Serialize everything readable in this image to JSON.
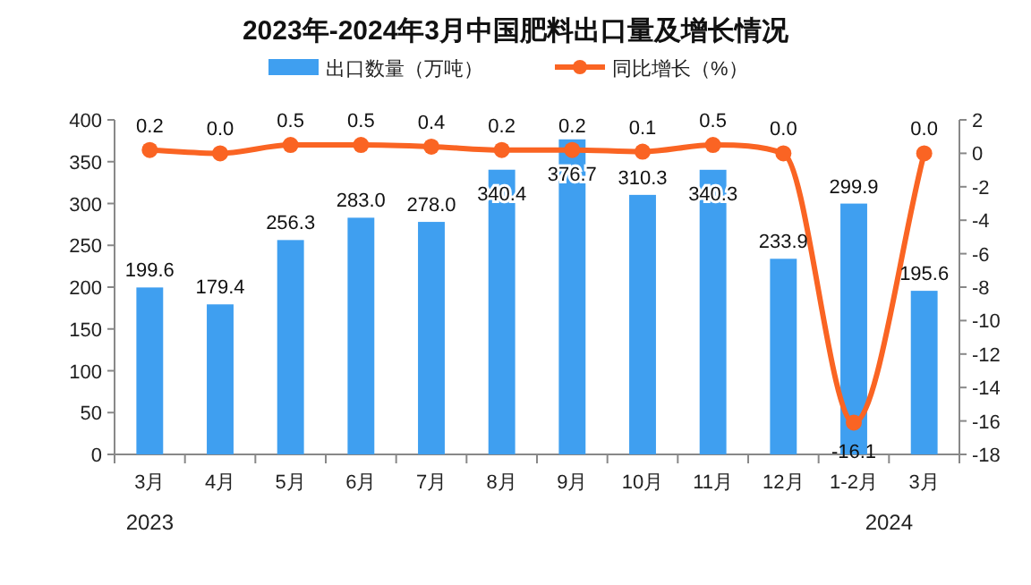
{
  "chart_data": {
    "type": "bar",
    "title": "2023年-2024年3月中国肥料出口量及增长情况",
    "categories": [
      "3月",
      "4月",
      "5月",
      "6月",
      "7月",
      "8月",
      "9月",
      "10月",
      "11月",
      "12月",
      "1-2月",
      "3月"
    ],
    "series": [
      {
        "name": "出口数量（万吨）",
        "color": "#3f9ff0",
        "values": [
          199.6,
          179.4,
          256.3,
          283.0,
          278.0,
          340.4,
          376.7,
          310.3,
          340.3,
          233.9,
          299.9,
          195.6
        ],
        "value_labels": [
          "199.6",
          "179.4",
          "256.3",
          "283.0",
          "278.0",
          "340.4",
          "376.7",
          "310.3",
          "340.3",
          "233.9",
          "299.9",
          "195.6"
        ]
      },
      {
        "name": "同比增长（%）",
        "type": "line",
        "axis": "y2",
        "color": "#fa6423",
        "marker": "circle",
        "values": [
          0.2,
          0.0,
          0.5,
          0.5,
          0.4,
          0.2,
          0.2,
          0.1,
          0.5,
          0.0,
          -16.1,
          0.0
        ],
        "value_labels": [
          "0.2",
          "0.0",
          "0.5",
          "0.5",
          "0.4",
          "0.2",
          "0.2",
          "0.1",
          "0.5",
          "0.0",
          "-16.1",
          "0.0"
        ]
      }
    ],
    "ylim": [
      0,
      400
    ],
    "yticks": [
      0,
      50,
      100,
      150,
      200,
      250,
      300,
      350,
      400
    ],
    "y2lim": [
      -18,
      2
    ],
    "y2ticks": [
      -18,
      -16,
      -14,
      -12,
      -10,
      -8,
      -6,
      -4,
      -2,
      0,
      2
    ],
    "legend": "top",
    "grid": false,
    "annotations": [
      "2023",
      "2024"
    ]
  }
}
